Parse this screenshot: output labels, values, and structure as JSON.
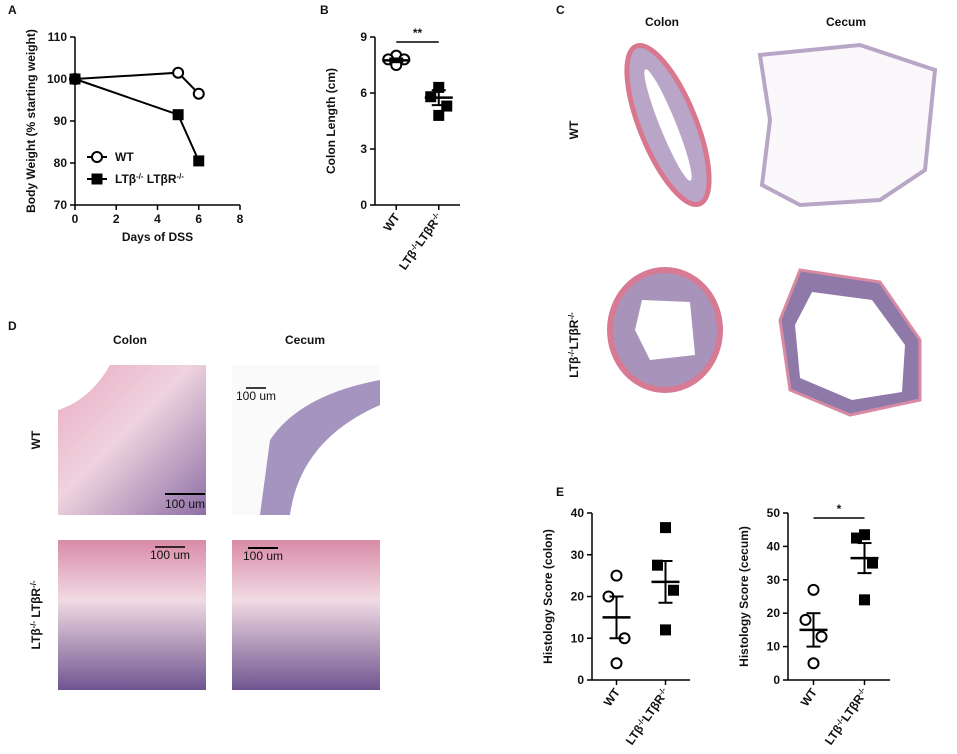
{
  "panels": {
    "a": "A",
    "b": "B",
    "c": "C",
    "d": "D",
    "e": "E"
  },
  "histology_c": {
    "columns": [
      "Colon",
      "Cecum"
    ],
    "rows": [
      "WT",
      "LTβ-/-LTβR-/-"
    ]
  },
  "histology_d": {
    "columns": [
      "Colon",
      "Cecum"
    ],
    "rows": [
      "WT",
      "LTβ-/- LTβR-/-"
    ],
    "scale_bars": [
      "100 um",
      "100 um",
      "100 um",
      "100 um"
    ]
  },
  "chart_data": [
    {
      "type": "line",
      "y_label": "Body Weight (% starting weight)",
      "x_label": "Days of DSS",
      "x": [
        0,
        5,
        6
      ],
      "series": [
        {
          "name": "WT",
          "color": "#000000",
          "marker": "open-circle",
          "values": [
            100,
            101.5,
            96.5
          ]
        },
        {
          "name": "LTβ-/- LTβR-/-",
          "color": "#000000",
          "marker": "filled-square",
          "values": [
            100,
            91.5,
            80.5
          ]
        }
      ],
      "xlim": [
        0,
        8
      ],
      "xticks": [
        0,
        2,
        4,
        6,
        8
      ],
      "ylim": [
        70,
        110
      ],
      "yticks": [
        70,
        80,
        90,
        100,
        110
      ],
      "legend": "lower left"
    },
    {
      "type": "strip",
      "y_label": "Colon Length (cm)",
      "categories": [
        "WT",
        "LTβ-/-LTβR-/-"
      ],
      "markers": [
        "open-circle",
        "filled-square"
      ],
      "points": [
        [
          8.0,
          7.8,
          7.8,
          7.5
        ],
        [
          6.3,
          5.8,
          5.3,
          4.8
        ]
      ],
      "means": [
        7.75,
        5.75
      ],
      "errors": [
        0.1,
        0.4
      ],
      "ylim": [
        0,
        9
      ],
      "yticks": [
        0,
        3,
        6,
        9
      ],
      "significance": "**"
    },
    {
      "type": "strip",
      "y_label": "Histology Score (colon)",
      "categories": [
        "WT",
        "LTβ-/-LTβR-/-"
      ],
      "markers": [
        "open-circle",
        "filled-square"
      ],
      "points": [
        [
          25,
          20,
          10,
          4
        ],
        [
          36.5,
          27.5,
          21.5,
          12
        ]
      ],
      "means": [
        15,
        23.5
      ],
      "errors": [
        5,
        5
      ],
      "ylim": [
        0,
        40
      ],
      "yticks": [
        0,
        10,
        20,
        30,
        40
      ]
    },
    {
      "type": "strip",
      "y_label": "Histology Score (cecum)",
      "categories": [
        "WT",
        "LTβ-/-LTβR-/-"
      ],
      "markers": [
        "open-circle",
        "filled-square"
      ],
      "points": [
        [
          27,
          18,
          13,
          5
        ],
        [
          43.5,
          42.5,
          35,
          24
        ]
      ],
      "means": [
        15,
        36.5
      ],
      "errors": [
        5,
        4.5
      ],
      "ylim": [
        0,
        50
      ],
      "yticks": [
        0,
        10,
        20,
        30,
        40,
        50
      ],
      "significance": "*"
    }
  ]
}
